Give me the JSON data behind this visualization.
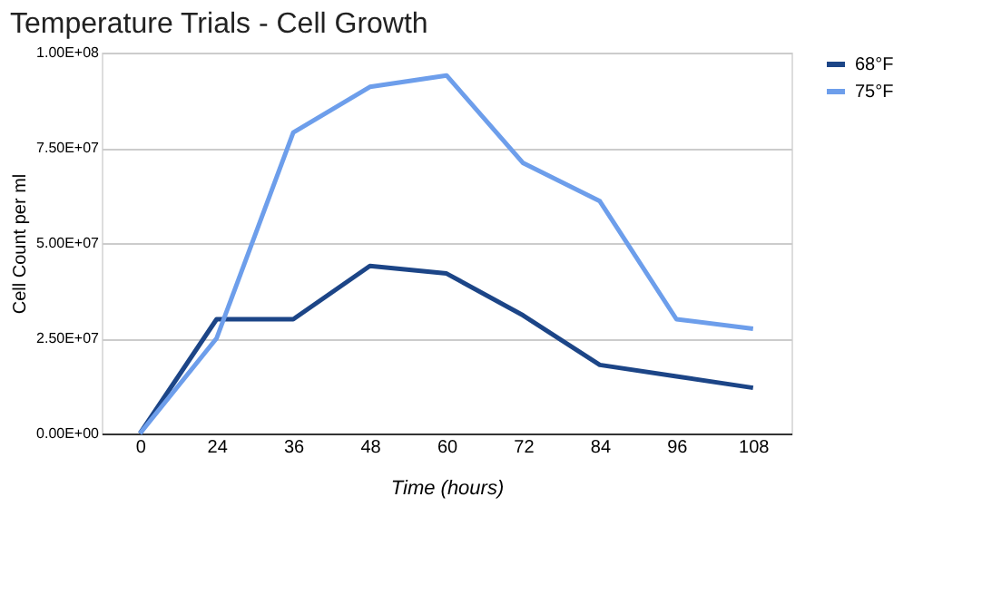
{
  "chart_data": {
    "type": "line",
    "title": "Temperature Trials - Cell Growth",
    "xlabel": "Time (hours)",
    "ylabel": "Cell Count per ml",
    "categories": [
      "0",
      "24",
      "36",
      "48",
      "60",
      "72",
      "84",
      "96",
      "108"
    ],
    "series": [
      {
        "name": "68°F",
        "color": "#1c4587",
        "values": [
          0,
          30000000,
          30000000,
          44000000,
          42000000,
          31000000,
          18000000,
          15000000,
          12000000
        ]
      },
      {
        "name": "75°F",
        "color": "#6d9eeb",
        "values": [
          0,
          25000000,
          79000000,
          91000000,
          94000000,
          71000000,
          61000000,
          30000000,
          27500000
        ]
      }
    ],
    "ylim": [
      0,
      100000000
    ],
    "yticks": [
      {
        "value": 0,
        "label": "0.00E+00"
      },
      {
        "value": 25000000,
        "label": "2.50E+07"
      },
      {
        "value": 50000000,
        "label": "5.00E+07"
      },
      {
        "value": 75000000,
        "label": "7.50E+07"
      },
      {
        "value": 100000000,
        "label": "1.00E+08"
      }
    ],
    "grid": "y",
    "legend": "top right",
    "marker": "none",
    "line_style": "solid"
  }
}
